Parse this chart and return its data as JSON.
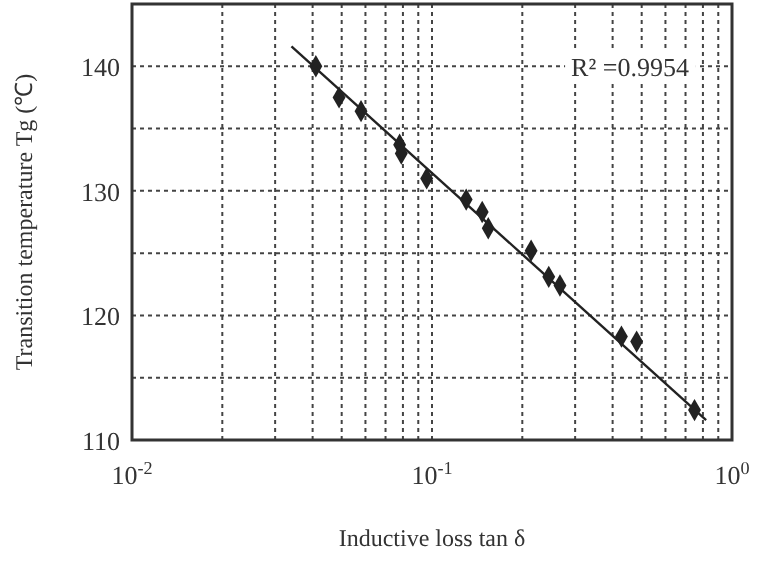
{
  "chart_data": {
    "type": "scatter",
    "xlabel": "Inductive loss tan δ",
    "ylabel": "Transition temperature Tg (℃)",
    "log": "x",
    "grid": true,
    "xlim": [
      0.01,
      1
    ],
    "ylim": [
      110,
      145
    ],
    "xticks": [
      {
        "value": 0.01,
        "label": "10$^{-2}$"
      },
      {
        "value": 0.02,
        "label": null
      },
      {
        "value": 0.03,
        "label": null
      },
      {
        "value": 0.04,
        "label": null
      },
      {
        "value": 0.05,
        "label": null
      },
      {
        "value": 0.06,
        "label": null
      },
      {
        "value": 0.07,
        "label": null
      },
      {
        "value": 0.08,
        "label": null
      },
      {
        "value": 0.09,
        "label": null
      },
      {
        "value": 0.1,
        "label": "10$^{-1}$"
      },
      {
        "value": 0.2,
        "label": null
      },
      {
        "value": 0.3,
        "label": null
      },
      {
        "value": 0.4,
        "label": null
      },
      {
        "value": 0.5,
        "label": null
      },
      {
        "value": 0.6,
        "label": null
      },
      {
        "value": 0.7,
        "label": null
      },
      {
        "value": 0.8,
        "label": null
      },
      {
        "value": 0.9,
        "label": null
      },
      {
        "value": 1,
        "label": "10$^{0}$"
      }
    ],
    "yticks": [
      110,
      {
        "value": 115,
        "label": null
      },
      120,
      {
        "value": 125,
        "label": null
      },
      130,
      {
        "value": 135,
        "label": null
      },
      140,
      {
        "value": 145,
        "label": null
      }
    ],
    "annotations": [
      "R² =0.9954"
    ],
    "series": [
      {
        "marker": "diamond",
        "color": "#222222",
        "x": [
          0.041,
          0.049,
          0.058,
          0.078,
          0.079,
          0.096,
          0.13,
          0.147,
          0.154,
          0.214,
          0.245,
          0.267,
          0.428,
          0.481,
          0.75
        ],
        "values": [
          140,
          137.5,
          136.4,
          133.7,
          133,
          131,
          129.3,
          128.3,
          127,
          125.2,
          123.1,
          122.4,
          118.3,
          117.9,
          112.4
        ]
      },
      {
        "type": "line",
        "color": "#222222",
        "x": [
          0.034,
          0.82
        ],
        "values": [
          141.6,
          111.6
        ]
      }
    ]
  }
}
